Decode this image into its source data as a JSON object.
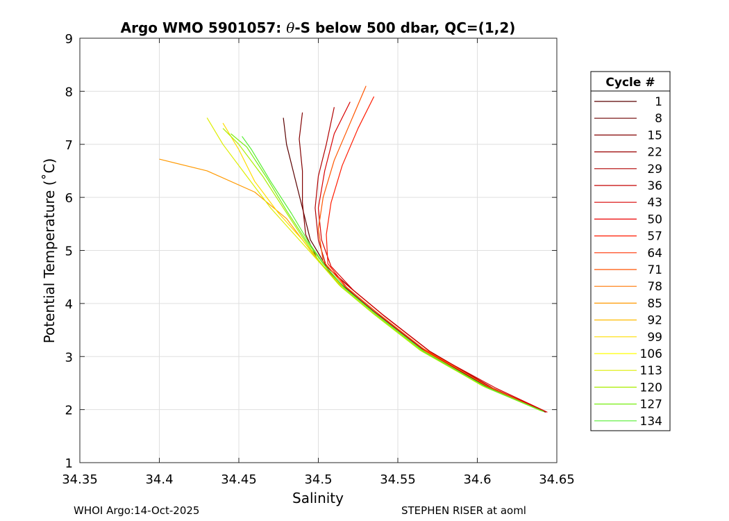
{
  "chart_data": {
    "type": "line",
    "title_prefix": "Argo WMO 5901057: ",
    "title_theta": "θ",
    "title_suffix": "-S below 500 dbar,  QC=(1,2)",
    "xlabel": "Salinity",
    "ylabel": "Potential Temperature (˚C)",
    "xlim": [
      34.35,
      34.65
    ],
    "ylim": [
      1,
      9
    ],
    "xticks": [
      34.35,
      34.4,
      34.45,
      34.5,
      34.55,
      34.6,
      34.65
    ],
    "xtick_labels": [
      "34.35",
      "34.4",
      "34.45",
      "34.5",
      "34.55",
      "34.6",
      "34.65"
    ],
    "yticks": [
      1,
      2,
      3,
      4,
      5,
      6,
      7,
      8,
      9
    ],
    "ytick_labels": [
      "1",
      "2",
      "3",
      "4",
      "5",
      "6",
      "7",
      "8",
      "9"
    ],
    "grid": true,
    "legend": {
      "title": "Cycle #",
      "placement": "outside-right",
      "entries": [
        {
          "label": "1",
          "color": "#5a0000"
        },
        {
          "label": "8",
          "color": "#6e0000"
        },
        {
          "label": "15",
          "color": "#820000"
        },
        {
          "label": "22",
          "color": "#9a0000"
        },
        {
          "label": "29",
          "color": "#b00000"
        },
        {
          "label": "36",
          "color": "#c40000"
        },
        {
          "label": "43",
          "color": "#d80000"
        },
        {
          "label": "50",
          "color": "#ea0000"
        },
        {
          "label": "57",
          "color": "#ff1a00"
        },
        {
          "label": "64",
          "color": "#ff3300"
        },
        {
          "label": "71",
          "color": "#ff5500"
        },
        {
          "label": "78",
          "color": "#ff7700"
        },
        {
          "label": "85",
          "color": "#ff9900"
        },
        {
          "label": "92",
          "color": "#ffbb00"
        },
        {
          "label": "99",
          "color": "#ffdd00"
        },
        {
          "label": "106",
          "color": "#ffff00"
        },
        {
          "label": "113",
          "color": "#ddee00"
        },
        {
          "label": "120",
          "color": "#aaee00"
        },
        {
          "label": "127",
          "color": "#77ee11"
        },
        {
          "label": "134",
          "color": "#55ee33"
        }
      ]
    },
    "series": [
      {
        "color": "#5a0000",
        "x": [
          34.643,
          34.61,
          34.57,
          34.54,
          34.52,
          34.505,
          34.495,
          34.49,
          34.485,
          34.48,
          34.478
        ],
        "y": [
          1.95,
          2.4,
          3.1,
          3.8,
          4.3,
          4.7,
          5.2,
          5.8,
          6.4,
          7.0,
          7.5
        ]
      },
      {
        "color": "#820000",
        "x": [
          34.642,
          34.605,
          34.565,
          34.535,
          34.515,
          34.5,
          34.492,
          34.49,
          34.49,
          34.488,
          34.49
        ],
        "y": [
          1.96,
          2.45,
          3.15,
          3.85,
          4.35,
          4.8,
          5.3,
          5.9,
          6.5,
          7.1,
          7.6
        ]
      },
      {
        "color": "#b00000",
        "x": [
          34.643,
          34.61,
          34.57,
          34.54,
          34.52,
          34.505,
          34.5,
          34.498,
          34.5,
          34.505,
          34.51
        ],
        "y": [
          1.96,
          2.4,
          3.1,
          3.8,
          4.3,
          4.7,
          5.2,
          5.8,
          6.4,
          7.0,
          7.7
        ]
      },
      {
        "color": "#d80000",
        "x": [
          34.644,
          34.612,
          34.572,
          34.542,
          34.522,
          34.508,
          34.502,
          34.5,
          34.504,
          34.51,
          34.52
        ],
        "y": [
          1.95,
          2.4,
          3.05,
          3.75,
          4.25,
          4.7,
          5.2,
          5.8,
          6.5,
          7.2,
          7.8
        ]
      },
      {
        "color": "#ff1a00",
        "x": [
          34.642,
          34.608,
          34.568,
          34.538,
          34.518,
          34.506,
          34.505,
          34.508,
          34.515,
          34.525,
          34.535
        ],
        "y": [
          1.96,
          2.42,
          3.1,
          3.8,
          4.3,
          4.75,
          5.3,
          5.9,
          6.6,
          7.3,
          7.9
        ]
      },
      {
        "color": "#ff5500",
        "x": [
          34.641,
          34.606,
          34.566,
          34.536,
          34.516,
          34.503,
          34.5,
          34.503,
          34.51,
          34.52,
          34.53
        ],
        "y": [
          1.97,
          2.45,
          3.15,
          3.85,
          4.35,
          4.8,
          5.4,
          6.0,
          6.7,
          7.4,
          8.1
        ]
      },
      {
        "color": "#ff9900",
        "x": [
          34.64,
          34.604,
          34.564,
          34.534,
          34.514,
          34.5,
          34.49,
          34.48,
          34.46,
          34.43,
          34.4
        ],
        "y": [
          1.98,
          2.45,
          3.15,
          3.85,
          4.35,
          4.8,
          5.2,
          5.6,
          6.1,
          6.5,
          6.72
        ]
      },
      {
        "color": "#ffdd00",
        "x": [
          34.641,
          34.605,
          34.565,
          34.535,
          34.515,
          34.502,
          34.49,
          34.475,
          34.46,
          34.45,
          34.44
        ],
        "y": [
          1.97,
          2.42,
          3.1,
          3.8,
          4.3,
          4.75,
          5.2,
          5.7,
          6.3,
          6.9,
          7.4
        ]
      },
      {
        "color": "#ddee00",
        "x": [
          34.64,
          34.603,
          34.563,
          34.533,
          34.513,
          34.5,
          34.485,
          34.47,
          34.455,
          34.44,
          34.43
        ],
        "y": [
          1.98,
          2.45,
          3.15,
          3.85,
          4.35,
          4.8,
          5.3,
          5.8,
          6.4,
          7.0,
          7.5
        ]
      },
      {
        "color": "#aaee00",
        "x": [
          34.64,
          34.604,
          34.564,
          34.534,
          34.514,
          34.501,
          34.49,
          34.478,
          34.465,
          34.45,
          34.44
        ],
        "y": [
          1.98,
          2.44,
          3.12,
          3.82,
          4.32,
          4.78,
          5.25,
          5.8,
          6.4,
          7.0,
          7.3
        ]
      },
      {
        "color": "#77ee11",
        "x": [
          34.641,
          34.606,
          34.566,
          34.536,
          34.516,
          34.503,
          34.492,
          34.48,
          34.468,
          34.455,
          34.445
        ],
        "y": [
          1.97,
          2.42,
          3.1,
          3.8,
          4.3,
          4.75,
          5.2,
          5.75,
          6.35,
          6.95,
          7.2
        ]
      },
      {
        "color": "#55ee33",
        "x": [
          34.642,
          34.607,
          34.567,
          34.537,
          34.517,
          34.504,
          34.494,
          34.483,
          34.47,
          34.458,
          34.452
        ],
        "y": [
          1.96,
          2.4,
          3.08,
          3.78,
          4.28,
          4.72,
          5.15,
          5.7,
          6.3,
          6.9,
          7.15
        ]
      }
    ]
  },
  "footer": {
    "left": "WHOI Argo:14-Oct-2025",
    "right": "STEPHEN RISER at aoml"
  }
}
